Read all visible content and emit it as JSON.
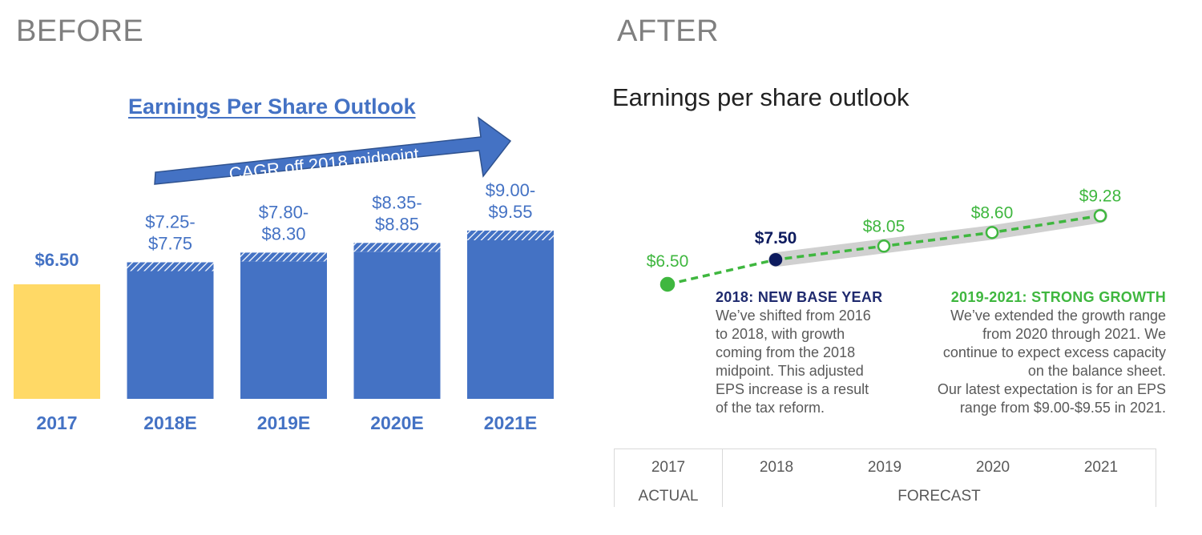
{
  "headings": {
    "before": "BEFORE",
    "after": "AFTER"
  },
  "chart_data": [
    {
      "type": "bar",
      "title": "Earnings Per Share Outlook",
      "categories": [
        "2017",
        "2018E",
        "2019E",
        "2020E",
        "2021E"
      ],
      "ranges": [
        {
          "low": 6.5,
          "high": 6.5
        },
        {
          "low": 7.25,
          "high": 7.75
        },
        {
          "low": 7.8,
          "high": 8.3
        },
        {
          "low": 8.35,
          "high": 8.85
        },
        {
          "low": 9.0,
          "high": 9.55
        }
      ],
      "labels": [
        [
          "$6.50"
        ],
        [
          "$7.25-",
          "$7.75"
        ],
        [
          "$7.80-",
          "$8.30"
        ],
        [
          "$8.35-",
          "$8.85"
        ],
        [
          "$9.00-",
          "$9.55"
        ]
      ],
      "arrow_label": "CAGR off 2018 midpoint",
      "colors": {
        "actual": "#ffd966",
        "forecast": "#4472c4",
        "label": "#4472c4"
      }
    },
    {
      "type": "line",
      "title": "Earnings per share outlook",
      "x": [
        "2017",
        "2018",
        "2019",
        "2020",
        "2021"
      ],
      "values": [
        6.5,
        7.5,
        8.05,
        8.6,
        9.28
      ],
      "labels": [
        "$6.50",
        "$7.50",
        "$8.05",
        "$8.60",
        "$9.28"
      ],
      "sections": {
        "actual": "ACTUAL",
        "forecast": "FORECAST"
      },
      "colors": {
        "actual": "#3fb73f",
        "base": "#0d1b5e",
        "forecast": "#3fb73f",
        "band": "#d0d0d0"
      }
    }
  ],
  "notes": [
    {
      "title": "2018: NEW BASE YEAR",
      "lines": [
        "We’ve shifted from 2016",
        "to 2018, with growth",
        "coming from the 2018",
        "midpoint. This adjusted",
        "EPS increase is a result",
        "of the tax reform."
      ]
    },
    {
      "title": "2019-2021: STRONG GROWTH",
      "lines": [
        "We’ve extended the growth range",
        "from 2020 through 2021. We",
        "continue to expect excess capacity",
        "on the balance sheet.",
        "Our latest expectation is for an EPS",
        "range from $9.00-$9.55 in 2021."
      ]
    }
  ]
}
